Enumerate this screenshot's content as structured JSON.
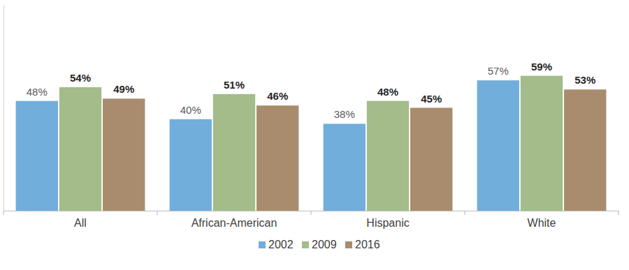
{
  "chart_data": {
    "type": "bar",
    "categories": [
      "All",
      "African-American",
      "Hispanic",
      "White"
    ],
    "series": [
      {
        "name": "2002",
        "color": "#72aedc",
        "values": [
          48,
          40,
          38,
          57
        ],
        "value_labels": [
          "48%",
          "40%",
          "38%",
          "57%"
        ]
      },
      {
        "name": "2009",
        "color": "#a3bc8a",
        "values": [
          54,
          51,
          48,
          59
        ],
        "value_labels": [
          "54%",
          "51%",
          "48%",
          "59%"
        ]
      },
      {
        "name": "2016",
        "color": "#a98c6e",
        "values": [
          49,
          46,
          45,
          53
        ],
        "value_labels": [
          "49%",
          "46%",
          "45%",
          "53%"
        ]
      }
    ],
    "ylim": [
      0,
      90
    ],
    "data_labels": true,
    "tick_labels": "x",
    "grid": false,
    "legend": "bottom"
  }
}
